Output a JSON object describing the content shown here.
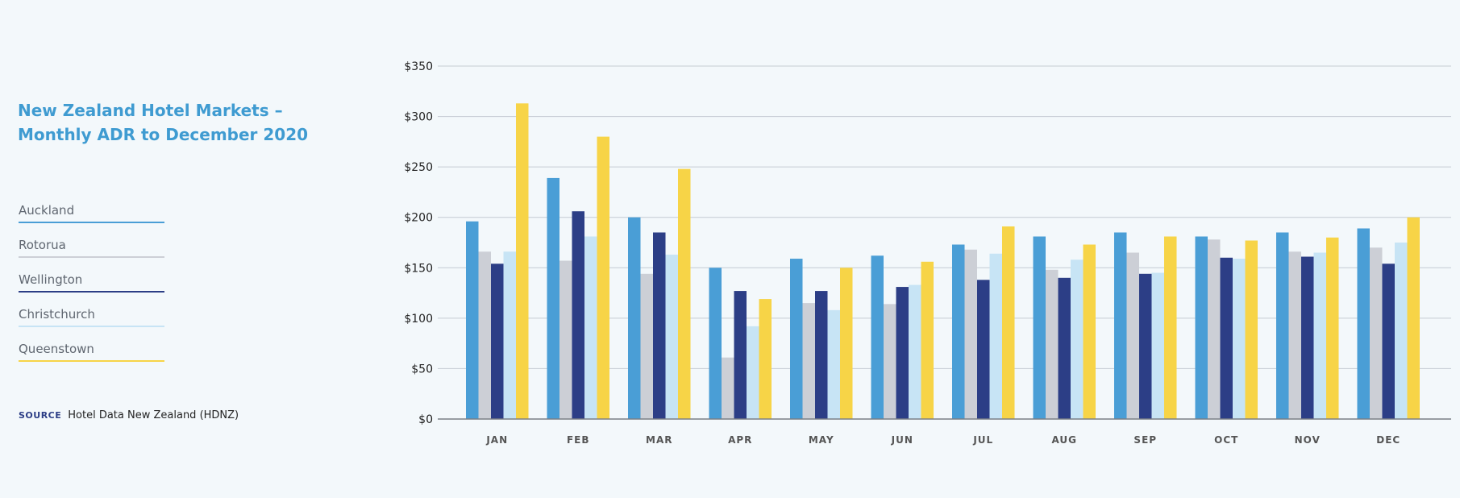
{
  "title_lines": [
    "New Zealand Hotel Markets –",
    "Monthly ADR to December 2020"
  ],
  "source": {
    "key": "SOURCE",
    "text": "Hotel Data New Zealand (HDNZ)"
  },
  "legend": [
    {
      "label": "Auckland",
      "color": "#4a9ed6"
    },
    {
      "label": "Rotorua",
      "color": "#cccfd6"
    },
    {
      "label": "Wellington",
      "color": "#2c3e86"
    },
    {
      "label": "Christchurch",
      "color": "#c7e4f5"
    },
    {
      "label": "Queenstown",
      "color": "#f7d447"
    }
  ],
  "chart_data": {
    "type": "bar",
    "title": "New Zealand Hotel Markets – Monthly ADR to December 2020",
    "categories": [
      "JAN",
      "FEB",
      "MAR",
      "APR",
      "MAY",
      "JUN",
      "JUL",
      "AUG",
      "SEP",
      "OCT",
      "NOV",
      "DEC"
    ],
    "ylim": [
      0,
      350
    ],
    "yticks": [
      0,
      50,
      100,
      150,
      200,
      250,
      300,
      350
    ],
    "ytick_labels": [
      "$0",
      "$50",
      "$100",
      "$150",
      "$200",
      "$250",
      "$300",
      "$350"
    ],
    "grid": true,
    "legend_position": "left",
    "series": [
      {
        "name": "Auckland",
        "color": "#4a9ed6",
        "values": [
          196,
          239,
          200,
          150,
          159,
          162,
          173,
          181,
          185,
          181,
          185,
          189
        ]
      },
      {
        "name": "Rotorua",
        "color": "#cccfd6",
        "values": [
          166,
          157,
          144,
          61,
          115,
          114,
          168,
          148,
          165,
          178,
          166,
          170
        ]
      },
      {
        "name": "Wellington",
        "color": "#2c3e86",
        "values": [
          154,
          206,
          185,
          127,
          127,
          131,
          138,
          140,
          144,
          160,
          161,
          154
        ]
      },
      {
        "name": "Christchurch",
        "color": "#c7e4f5",
        "values": [
          166,
          181,
          163,
          92,
          108,
          133,
          164,
          158,
          145,
          159,
          165,
          175
        ]
      },
      {
        "name": "Queenstown",
        "color": "#f7d447",
        "values": [
          313,
          280,
          248,
          119,
          150,
          156,
          191,
          173,
          181,
          177,
          180,
          200
        ]
      }
    ]
  }
}
